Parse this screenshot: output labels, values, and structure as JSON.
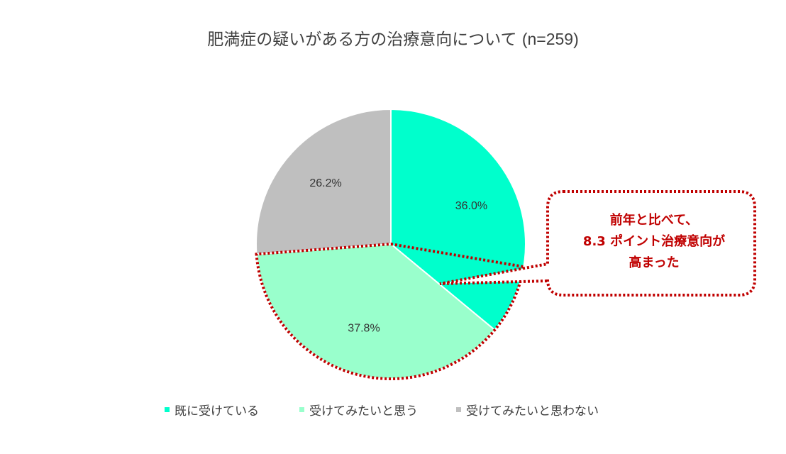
{
  "chart_data": {
    "type": "pie",
    "title": "肥満症の疑いがある方の治療意向について",
    "title_n": "(n=259)",
    "categories": [
      "既に受けている",
      "受けてみたいと思う",
      "受けてみたいと思わない"
    ],
    "values": [
      36.0,
      37.8,
      26.2
    ],
    "labels": [
      "36.0%",
      "37.8%",
      "26.2%"
    ],
    "colors": [
      "#00ffcc",
      "#99ffcc",
      "#bfbfbf"
    ],
    "legend_position": "bottom",
    "annotation": {
      "lines": [
        "前年と比べて、",
        "8.3 ポイント治療意向が",
        "高まった"
      ],
      "color": "#c00000",
      "border_style": "dotted"
    },
    "highlight_segments": "8.3 points of 既に受けている plus 受けてみたいと思う"
  }
}
